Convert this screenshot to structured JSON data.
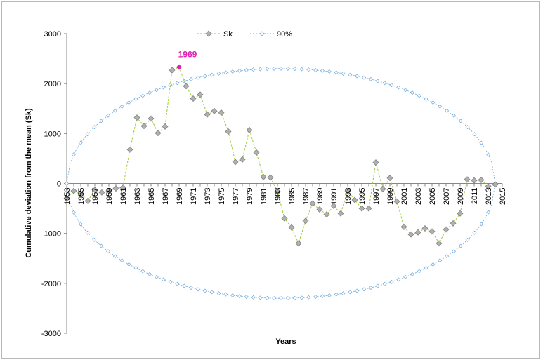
{
  "chart_data": {
    "type": "line",
    "xlabel": "Years",
    "ylabel": "Cumulative deviation from the mean (Sk)",
    "ylim": [
      -3000,
      3000
    ],
    "yticks": [
      3000,
      2000,
      1000,
      0,
      -1000,
      -2000,
      -3000
    ],
    "xlim": [
      1953,
      2015
    ],
    "xticks": [
      1953,
      1955,
      1957,
      1959,
      1961,
      1963,
      1965,
      1967,
      1969,
      1971,
      1973,
      1975,
      1977,
      1979,
      1981,
      1983,
      1985,
      1987,
      1989,
      1991,
      1993,
      1995,
      1997,
      1999,
      2001,
      2003,
      2005,
      2007,
      2009,
      2011,
      2013,
      2015
    ],
    "grid": false,
    "legend": {
      "position": "top",
      "entries": [
        "Sk",
        "90%"
      ]
    },
    "annotation": {
      "text": "1969",
      "x": 1969,
      "y": 2330,
      "color": "#e020b0"
    },
    "series": [
      {
        "name": "Sk",
        "color": "#9acd32",
        "marker": "diamond",
        "marker_color": "#b0b0b0",
        "x": [
          1953,
          1954,
          1955,
          1956,
          1957,
          1958,
          1959,
          1960,
          1961,
          1962,
          1963,
          1964,
          1965,
          1966,
          1967,
          1968,
          1969,
          1970,
          1971,
          1972,
          1973,
          1974,
          1975,
          1976,
          1977,
          1978,
          1979,
          1980,
          1981,
          1982,
          1983,
          1984,
          1985,
          1986,
          1987,
          1988,
          1989,
          1990,
          1991,
          1992,
          1993,
          1994,
          1995,
          1996,
          1997,
          1998,
          1999,
          2000,
          2001,
          2002,
          2003,
          2004,
          2005,
          2006,
          2007,
          2008,
          2009,
          2010,
          2011,
          2012,
          2013,
          2014
        ],
        "y": [
          -300,
          -150,
          -200,
          -350,
          -130,
          -180,
          -150,
          -100,
          -80,
          680,
          1320,
          1150,
          1300,
          1010,
          1140,
          2270,
          2330,
          1950,
          1700,
          1780,
          1380,
          1450,
          1420,
          1040,
          430,
          480,
          1070,
          620,
          130,
          120,
          -160,
          -700,
          -880,
          -1200,
          -750,
          -400,
          -520,
          -620,
          -450,
          -600,
          -150,
          -330,
          -500,
          -500,
          420,
          -110,
          110,
          -360,
          -870,
          -1020,
          -980,
          -900,
          -960,
          -1200,
          -920,
          -800,
          -600,
          80,
          60,
          70,
          -60,
          -20
        ]
      },
      {
        "name": "90%",
        "color": "#6fa8dc",
        "marker": "diamond",
        "marker_color": "#ffffff",
        "envelope": true,
        "amplitude": 2300,
        "x_start": 1953,
        "x_end": 2014
      }
    ]
  }
}
